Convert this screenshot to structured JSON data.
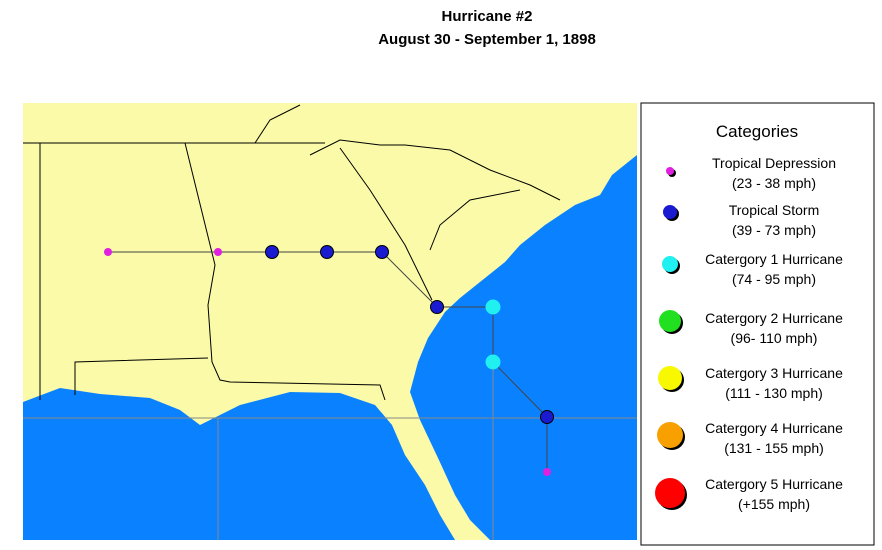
{
  "title": [
    "Hurricane #2",
    "August 30  - September 1, 1898"
  ],
  "legend": {
    "title": "Categories",
    "items": [
      {
        "name": "Tropical Depression",
        "range": "(23 - 38 mph)"
      },
      {
        "name": "Tropical Storm",
        "range": "(39 - 73 mph)"
      },
      {
        "name": "Catergory 1 Hurricane",
        "range": "(74 - 95 mph)"
      },
      {
        "name": "Catergory 2 Hurricane",
        "range": "(96- 110 mph)"
      },
      {
        "name": "Catergory 3 Hurricane",
        "range": "(111 - 130 mph)"
      },
      {
        "name": "Catergory 4 Hurricane",
        "range": "(131 - 155 mph)"
      },
      {
        "name": "Catergory 5 Hurricane",
        "range": "(+155 mph)"
      }
    ]
  }
}
